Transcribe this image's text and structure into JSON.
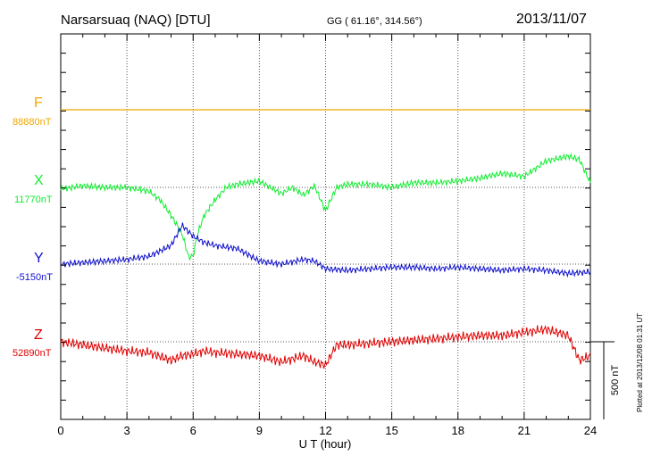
{
  "header": {
    "station": "Narsarsuaq (NAQ)  [DTU]",
    "coords": "GG ( 61.16°, 314.56°)",
    "date": "2013/11/07"
  },
  "footer": {
    "plotted": "Plotted at 2013/12/08 01:31  UT"
  },
  "scale_bar": {
    "label": "500 nT",
    "value_nT": 500
  },
  "chart_data": {
    "type": "line",
    "title": "Narsarsuaq (NAQ)  [DTU]",
    "xlabel": "U T (hour)",
    "ylabel": "",
    "xlim": [
      0,
      24
    ],
    "xticks": [
      0,
      3,
      6,
      9,
      12,
      15,
      18,
      21,
      24
    ],
    "grid": true,
    "colors": {
      "F": "#f0a800",
      "X": "#10ee30",
      "Y": "#1010cc",
      "Z": "#e00000"
    },
    "series": [
      {
        "name": "F",
        "baseline": "88880nT",
        "x": [
          0,
          24
        ],
        "y": [
          0,
          0
        ]
      },
      {
        "name": "X",
        "baseline": "11770nT",
        "x": [
          0,
          1,
          2,
          3,
          4,
          4.5,
          5,
          5.5,
          5.8,
          6,
          6.2,
          6.5,
          7,
          7.5,
          8,
          9,
          10,
          10.5,
          11,
          11.5,
          12,
          12.5,
          13,
          14,
          15,
          16,
          17,
          18,
          19,
          20,
          21,
          22,
          23,
          23.5,
          24
        ],
        "y": [
          -10,
          10,
          0,
          0,
          -25,
          -80,
          -180,
          -300,
          -450,
          -440,
          -300,
          -180,
          -80,
          0,
          20,
          40,
          -40,
          0,
          -50,
          10,
          -150,
          0,
          20,
          20,
          0,
          30,
          30,
          40,
          60,
          90,
          70,
          170,
          200,
          180,
          30
        ]
      },
      {
        "name": "Y",
        "baseline": "-5150nT",
        "x": [
          0,
          1,
          2,
          3,
          4,
          5,
          5.5,
          6,
          6.5,
          7,
          7.5,
          8,
          9,
          10,
          11,
          11.5,
          12,
          13,
          14,
          15,
          16,
          17,
          18,
          19,
          20,
          21,
          22,
          23,
          24
        ],
        "y": [
          0,
          10,
          20,
          30,
          50,
          120,
          250,
          180,
          140,
          120,
          110,
          100,
          20,
          0,
          30,
          20,
          -30,
          -40,
          -30,
          -20,
          -20,
          -30,
          -20,
          -30,
          -40,
          -30,
          -40,
          -60,
          -50
        ]
      },
      {
        "name": "Z",
        "baseline": "52890nT",
        "x": [
          0,
          1,
          2,
          3,
          4,
          5,
          5.5,
          6,
          6.5,
          7,
          8,
          9,
          9.5,
          10,
          11,
          11.5,
          12,
          12.5,
          13,
          14,
          15,
          16,
          17,
          18,
          19,
          20,
          21,
          22,
          23,
          23.5,
          24
        ],
        "y": [
          0,
          -20,
          -40,
          -60,
          -70,
          -120,
          -90,
          -80,
          -60,
          -70,
          -80,
          -90,
          -110,
          -130,
          -90,
          -130,
          -150,
          -20,
          -20,
          -10,
          0,
          10,
          20,
          30,
          40,
          40,
          60,
          80,
          40,
          -120,
          -90
        ]
      }
    ]
  }
}
